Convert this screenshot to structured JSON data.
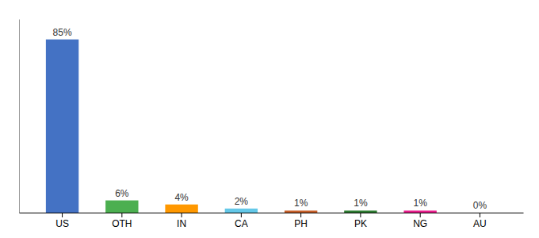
{
  "chart_data": {
    "type": "bar",
    "categories": [
      "US",
      "OTH",
      "IN",
      "CA",
      "PH",
      "PK",
      "NG",
      "AU"
    ],
    "values": [
      85,
      6,
      4,
      2,
      1,
      1,
      1,
      0
    ],
    "value_labels": [
      "85%",
      "6%",
      "4%",
      "2%",
      "1%",
      "1%",
      "1%",
      "0%"
    ],
    "colors": [
      "#4472c4",
      "#4caf50",
      "#ff9800",
      "#64c8e8",
      "#c8602a",
      "#2e7d32",
      "#e91e8c",
      "#9e9e9e"
    ],
    "ylim": [
      0,
      95
    ],
    "grid": false,
    "data_labels": true,
    "tick_labels": "x"
  }
}
